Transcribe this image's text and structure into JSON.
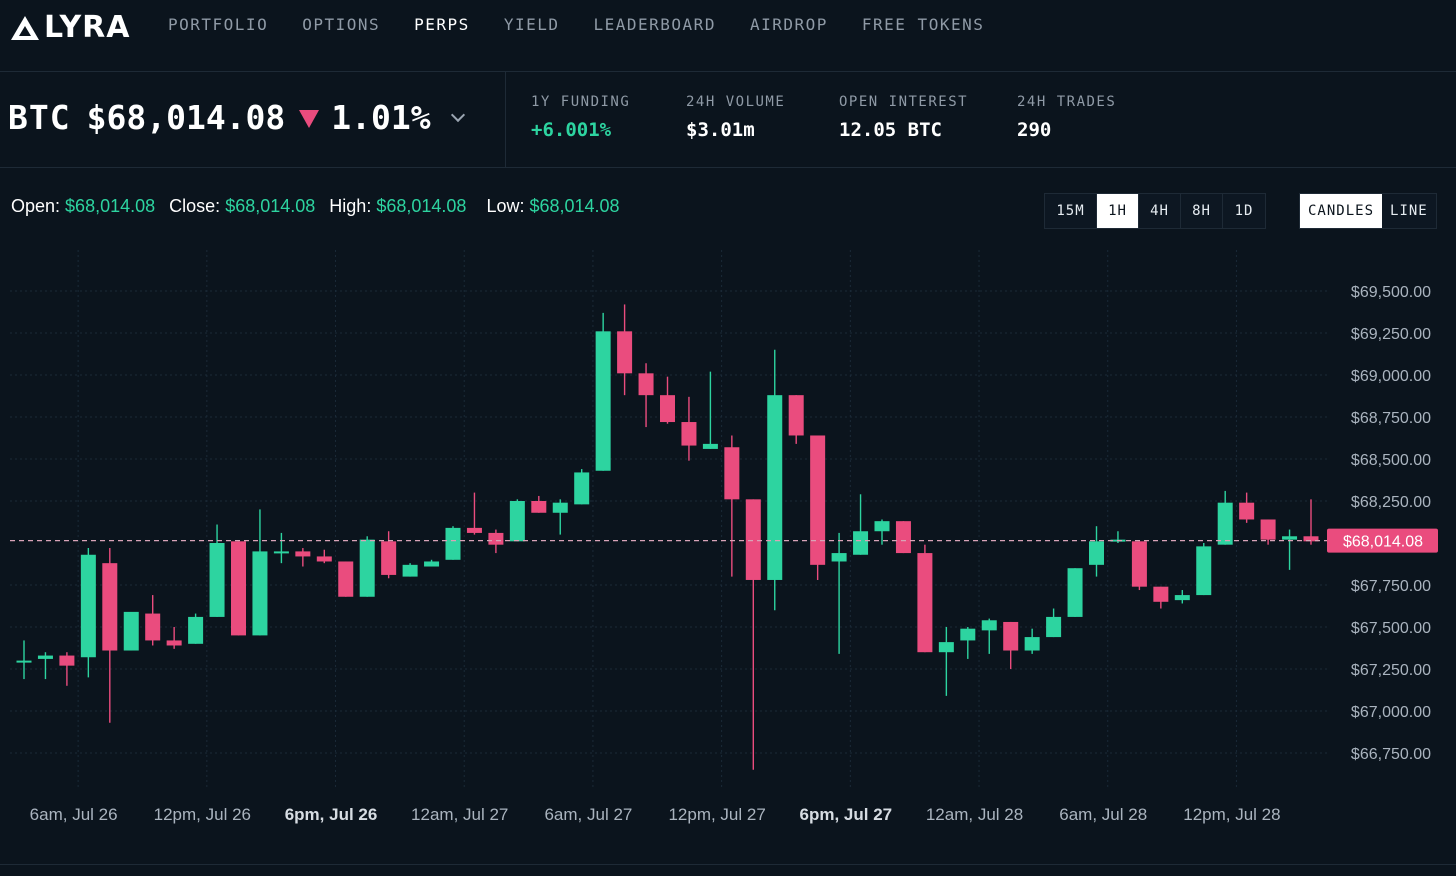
{
  "brand": {
    "name": "LYRA"
  },
  "nav": {
    "items": [
      {
        "label": "PORTFOLIO",
        "active": false
      },
      {
        "label": "OPTIONS",
        "active": false
      },
      {
        "label": "PERPS",
        "active": true
      },
      {
        "label": "YIELD",
        "active": false
      },
      {
        "label": "LEADERBOARD",
        "active": false
      },
      {
        "label": "AIRDROP",
        "active": false
      },
      {
        "label": "FREE TOKENS",
        "active": false
      }
    ]
  },
  "market": {
    "asset": "BTC",
    "price": "$68,014.08",
    "change": "1.01%",
    "direction": "down",
    "stats": [
      {
        "label": "1Y FUNDING",
        "value": "+6.001%",
        "color": "green"
      },
      {
        "label": "24H VOLUME",
        "value": "$3.01m",
        "color": "white"
      },
      {
        "label": "OPEN INTEREST",
        "value": "12.05 BTC",
        "color": "white"
      },
      {
        "label": "24H TRADES",
        "value": "290",
        "color": "white"
      }
    ]
  },
  "ohlc": {
    "open_label": "Open:",
    "open": "$68,014.08",
    "close_label": "Close:",
    "close": "$68,014.08",
    "high_label": "High:",
    "high": "$68,014.08",
    "low_label": "Low:",
    "low": "$68,014.08"
  },
  "timeframes": {
    "options": [
      "15M",
      "1H",
      "4H",
      "8H",
      "1D"
    ],
    "selected": "1H"
  },
  "chart_types": {
    "options": [
      "CANDLES",
      "LINE"
    ],
    "selected": "CANDLES"
  },
  "colors": {
    "up": "#2dd4a0",
    "down": "#ea4c7e",
    "background": "#0b141d",
    "grid": "#1b2a38",
    "axis_text": "#aab4bf"
  },
  "chart_data": {
    "type": "candlestick",
    "y_ticks": [
      "$69,500.00",
      "$69,250.00",
      "$69,000.00",
      "$68,750.00",
      "$68,500.00",
      "$68,250.00",
      "$67,750.00",
      "$67,500.00",
      "$67,250.00",
      "$67,000.00",
      "$66,750.00"
    ],
    "y_tick_values": [
      69500,
      69250,
      69000,
      68750,
      68500,
      68250,
      67750,
      67500,
      67250,
      67000,
      66750
    ],
    "ylim": [
      66650,
      69600
    ],
    "x_labels": [
      {
        "label": "6am, Jul 26",
        "index": 2.5,
        "bold": false
      },
      {
        "label": "12pm, Jul 26",
        "index": 8.5,
        "bold": false
      },
      {
        "label": "6pm, Jul 26",
        "index": 14.5,
        "bold": true
      },
      {
        "label": "12am, Jul 27",
        "index": 20.5,
        "bold": false
      },
      {
        "label": "6am, Jul 27",
        "index": 26.5,
        "bold": false
      },
      {
        "label": "12pm, Jul 27",
        "index": 32.5,
        "bold": false
      },
      {
        "label": "6pm, Jul 27",
        "index": 38.5,
        "bold": true
      },
      {
        "label": "12am, Jul 28",
        "index": 44.5,
        "bold": false
      },
      {
        "label": "6am, Jul 28",
        "index": 50.5,
        "bold": false
      },
      {
        "label": "12pm, Jul 28",
        "index": 56.5,
        "bold": false
      }
    ],
    "current_price": 68014.08,
    "current_price_label": "$68,014.08",
    "candles": [
      {
        "o": 67300,
        "h": 67420,
        "l": 67190,
        "c": 67300
      },
      {
        "o": 67310,
        "h": 67350,
        "l": 67190,
        "c": 67330
      },
      {
        "o": 67330,
        "h": 67350,
        "l": 67150,
        "c": 67270
      },
      {
        "o": 67320,
        "h": 67970,
        "l": 67200,
        "c": 67930
      },
      {
        "o": 67880,
        "h": 67970,
        "l": 66930,
        "c": 67360
      },
      {
        "o": 67360,
        "h": 67580,
        "l": 67360,
        "c": 67590
      },
      {
        "o": 67580,
        "h": 67690,
        "l": 67390,
        "c": 67420
      },
      {
        "o": 67420,
        "h": 67500,
        "l": 67370,
        "c": 67390
      },
      {
        "o": 67400,
        "h": 67580,
        "l": 67400,
        "c": 67560
      },
      {
        "o": 67560,
        "h": 68110,
        "l": 67560,
        "c": 68000
      },
      {
        "o": 68010,
        "h": 68010,
        "l": 67450,
        "c": 67450
      },
      {
        "o": 67450,
        "h": 68200,
        "l": 67450,
        "c": 67950
      },
      {
        "o": 67950,
        "h": 68060,
        "l": 67880,
        "c": 67950
      },
      {
        "o": 67950,
        "h": 67970,
        "l": 67860,
        "c": 67920
      },
      {
        "o": 67920,
        "h": 67960,
        "l": 67880,
        "c": 67890
      },
      {
        "o": 67890,
        "h": 67890,
        "l": 67680,
        "c": 67680
      },
      {
        "o": 67680,
        "h": 68040,
        "l": 67680,
        "c": 68020
      },
      {
        "o": 68010,
        "h": 68070,
        "l": 67790,
        "c": 67810
      },
      {
        "o": 67800,
        "h": 67880,
        "l": 67800,
        "c": 67870
      },
      {
        "o": 67860,
        "h": 67900,
        "l": 67860,
        "c": 67890
      },
      {
        "o": 67900,
        "h": 68100,
        "l": 67900,
        "c": 68090
      },
      {
        "o": 68090,
        "h": 68300,
        "l": 68050,
        "c": 68060
      },
      {
        "o": 68060,
        "h": 68080,
        "l": 67940,
        "c": 67990
      },
      {
        "o": 68010,
        "h": 68260,
        "l": 68010,
        "c": 68250
      },
      {
        "o": 68250,
        "h": 68280,
        "l": 68180,
        "c": 68180
      },
      {
        "o": 68180,
        "h": 68260,
        "l": 68050,
        "c": 68240
      },
      {
        "o": 68230,
        "h": 68440,
        "l": 68230,
        "c": 68420
      },
      {
        "o": 68430,
        "h": 69370,
        "l": 68430,
        "c": 69260
      },
      {
        "o": 69260,
        "h": 69420,
        "l": 68880,
        "c": 69010
      },
      {
        "o": 69010,
        "h": 69070,
        "l": 68690,
        "c": 68880
      },
      {
        "o": 68880,
        "h": 68990,
        "l": 68710,
        "c": 68720
      },
      {
        "o": 68720,
        "h": 68870,
        "l": 68490,
        "c": 68580
      },
      {
        "o": 68560,
        "h": 69020,
        "l": 68560,
        "c": 68590
      },
      {
        "o": 68570,
        "h": 68640,
        "l": 67800,
        "c": 68260
      },
      {
        "o": 68260,
        "h": 68260,
        "l": 66650,
        "c": 67780
      },
      {
        "o": 67780,
        "h": 69150,
        "l": 67600,
        "c": 68880
      },
      {
        "o": 68880,
        "h": 68880,
        "l": 68590,
        "c": 68640
      },
      {
        "o": 68640,
        "h": 68640,
        "l": 67780,
        "c": 67870
      },
      {
        "o": 67890,
        "h": 68060,
        "l": 67340,
        "c": 67940
      },
      {
        "o": 67930,
        "h": 68290,
        "l": 67930,
        "c": 68070
      },
      {
        "o": 68070,
        "h": 68140,
        "l": 67990,
        "c": 68130
      },
      {
        "o": 68130,
        "h": 68130,
        "l": 67940,
        "c": 67940
      },
      {
        "o": 67940,
        "h": 67990,
        "l": 67350,
        "c": 67350
      },
      {
        "o": 67350,
        "h": 67500,
        "l": 67090,
        "c": 67410
      },
      {
        "o": 67420,
        "h": 67500,
        "l": 67310,
        "c": 67490
      },
      {
        "o": 67480,
        "h": 67550,
        "l": 67340,
        "c": 67540
      },
      {
        "o": 67530,
        "h": 67530,
        "l": 67250,
        "c": 67360
      },
      {
        "o": 67360,
        "h": 67490,
        "l": 67340,
        "c": 67440
      },
      {
        "o": 67440,
        "h": 67610,
        "l": 67440,
        "c": 67560
      },
      {
        "o": 67560,
        "h": 67850,
        "l": 67560,
        "c": 67850
      },
      {
        "o": 67870,
        "h": 68100,
        "l": 67800,
        "c": 68010
      },
      {
        "o": 68010,
        "h": 68070,
        "l": 68000,
        "c": 68020
      },
      {
        "o": 68010,
        "h": 68010,
        "l": 67720,
        "c": 67740
      },
      {
        "o": 67740,
        "h": 67740,
        "l": 67610,
        "c": 67650
      },
      {
        "o": 67660,
        "h": 67720,
        "l": 67640,
        "c": 67690
      },
      {
        "o": 67690,
        "h": 68000,
        "l": 67690,
        "c": 67980
      },
      {
        "o": 67990,
        "h": 68310,
        "l": 67990,
        "c": 68240
      },
      {
        "o": 68240,
        "h": 68300,
        "l": 68120,
        "c": 68140
      },
      {
        "o": 68140,
        "h": 68140,
        "l": 67990,
        "c": 68020
      },
      {
        "o": 68020,
        "h": 68080,
        "l": 67840,
        "c": 68040
      },
      {
        "o": 68040,
        "h": 68260,
        "l": 67990,
        "c": 68010
      }
    ]
  }
}
